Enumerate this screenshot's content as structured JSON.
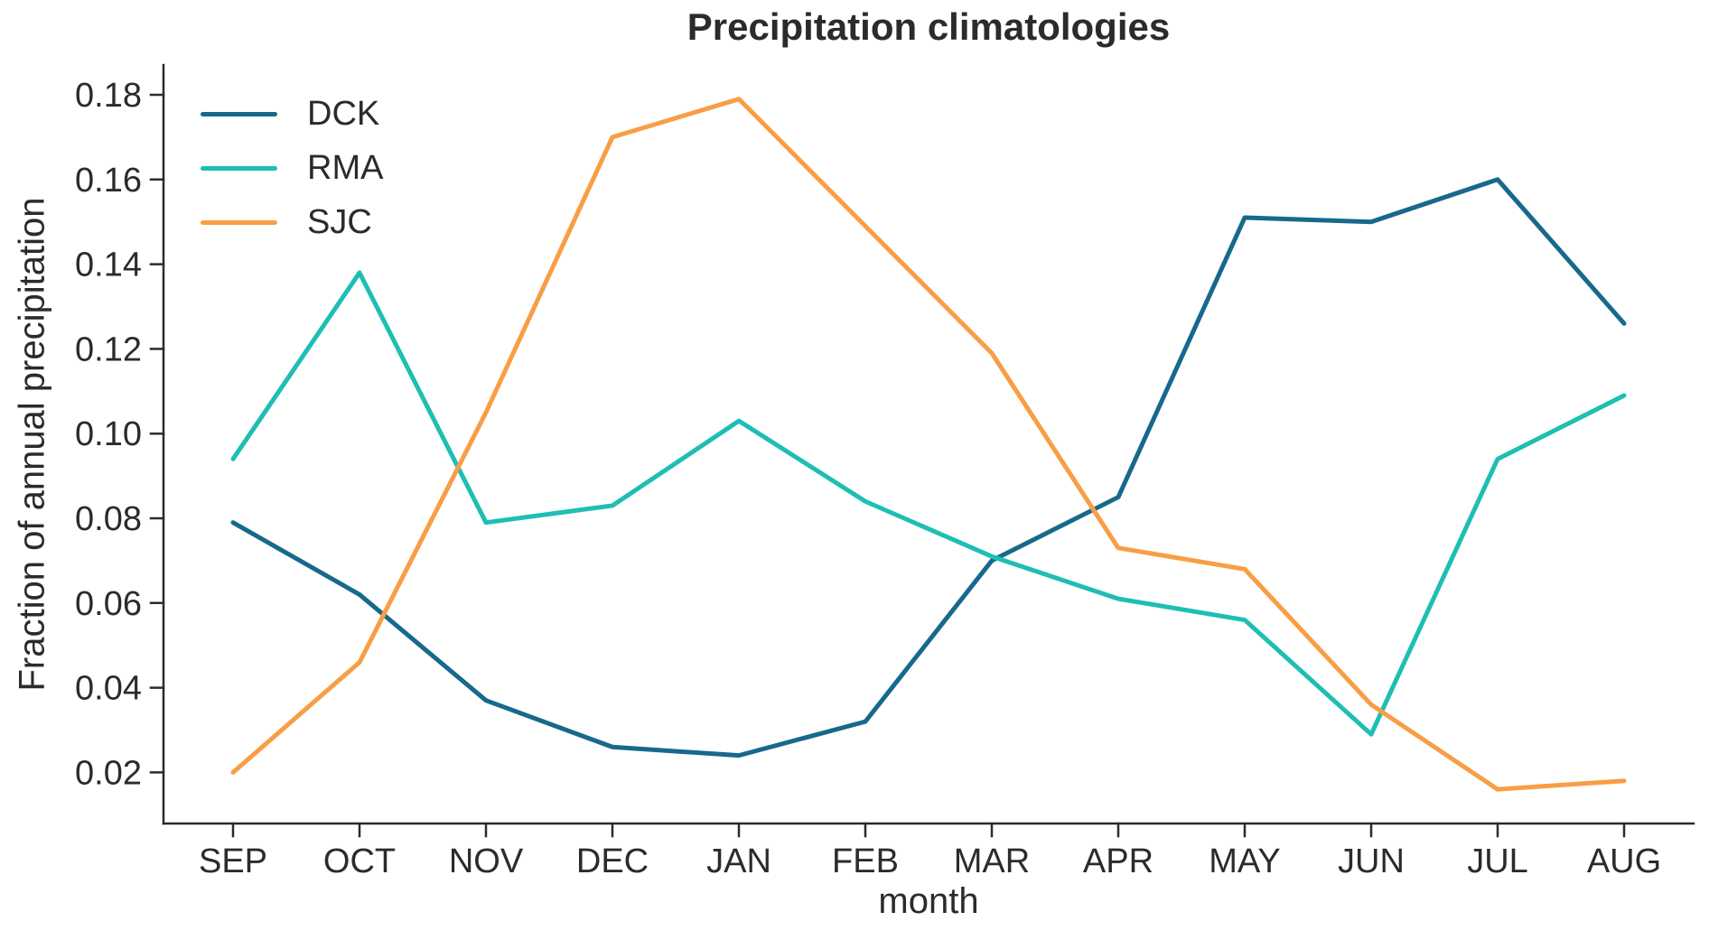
{
  "chart_data": {
    "type": "line",
    "title": "Precipitation climatologies",
    "xlabel": "month",
    "ylabel": "Fraction of annual precipitation",
    "categories": [
      "SEP",
      "OCT",
      "NOV",
      "DEC",
      "JAN",
      "FEB",
      "MAR",
      "APR",
      "MAY",
      "JUN",
      "JUL",
      "AUG"
    ],
    "series": [
      {
        "name": "DCK",
        "color": "#17698C",
        "values": [
          0.079,
          0.062,
          0.037,
          0.026,
          0.024,
          0.032,
          0.07,
          0.085,
          0.151,
          0.15,
          0.16,
          0.126
        ]
      },
      {
        "name": "RMA",
        "color": "#1EBEB5",
        "values": [
          0.094,
          0.138,
          0.079,
          0.083,
          0.103,
          0.084,
          0.071,
          0.061,
          0.056,
          0.029,
          0.094,
          0.109
        ]
      },
      {
        "name": "SJC",
        "color": "#F89E45",
        "values": [
          0.02,
          0.046,
          0.105,
          0.17,
          0.179,
          0.149,
          0.119,
          0.073,
          0.068,
          0.036,
          0.016,
          0.018
        ]
      }
    ],
    "y_ticks": [
      0.18,
      0.16,
      0.14,
      0.12,
      0.1,
      0.08,
      0.06,
      0.04,
      0.02
    ],
    "ylim": [
      0.008,
      0.187
    ],
    "grid": false,
    "legend_position": "upper left"
  }
}
